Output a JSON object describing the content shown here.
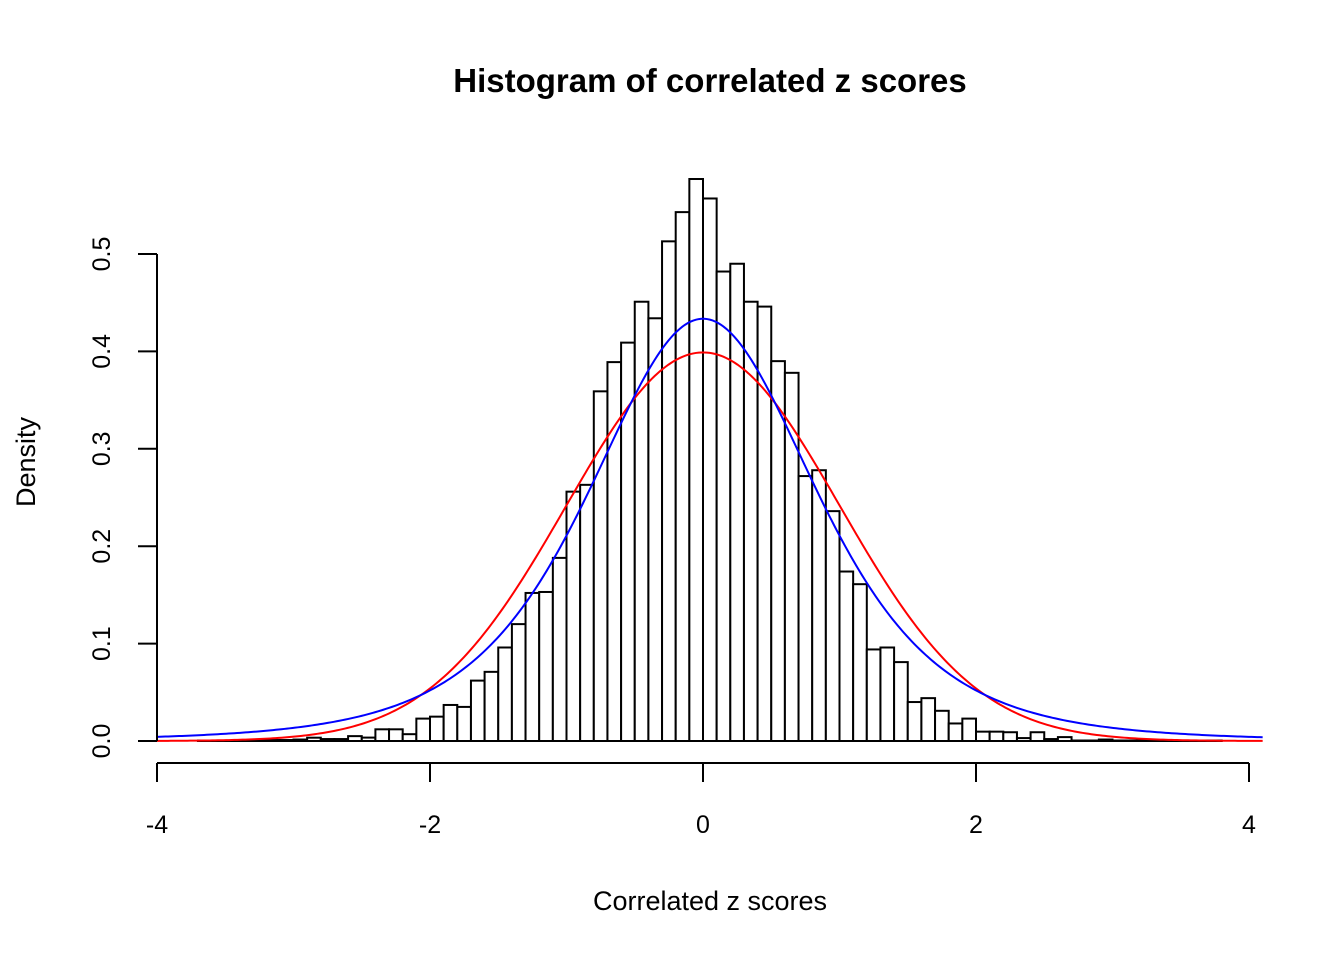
{
  "chart_data": {
    "type": "bar",
    "title": "Histogram of correlated z scores",
    "xlabel": "Correlated z scores",
    "ylabel": "Density",
    "xlim": [
      -4,
      4
    ],
    "ylim": [
      0,
      0.5
    ],
    "grid": false,
    "x_ticks": [
      "-4",
      "-2",
      "0",
      "2",
      "4"
    ],
    "x_tick_values": [
      -4,
      -2,
      0,
      2,
      4
    ],
    "y_ticks": [
      "0.0",
      "0.1",
      "0.2",
      "0.3",
      "0.4",
      "0.5"
    ],
    "y_tick_values": [
      0,
      0.1,
      0.2,
      0.3,
      0.4,
      0.5
    ],
    "bin_start": -3.7,
    "bin_width": 0.1,
    "densities": [
      0.0005,
      0.0005,
      0.0005,
      0.0008,
      0.001,
      0.001,
      0.001,
      0.0015,
      0.0034,
      0.002,
      0.002,
      0.005,
      0.0035,
      0.012,
      0.012,
      0.007,
      0.023,
      0.025,
      0.037,
      0.035,
      0.062,
      0.071,
      0.096,
      0.12,
      0.152,
      0.153,
      0.188,
      0.256,
      0.263,
      0.359,
      0.389,
      0.409,
      0.451,
      0.434,
      0.513,
      0.543,
      0.577,
      0.557,
      0.482,
      0.49,
      0.451,
      0.446,
      0.39,
      0.378,
      0.272,
      0.278,
      0.236,
      0.174,
      0.161,
      0.094,
      0.096,
      0.081,
      0.04,
      0.044,
      0.031,
      0.018,
      0.023,
      0.0096,
      0.0096,
      0.009,
      0.003,
      0.009,
      0.002,
      0.004,
      0.0005,
      0.0005,
      0.0015,
      0.0005,
      0.0005,
      0.0005,
      0.0005,
      0.0005,
      0.0005,
      0.0005,
      0.0005
    ],
    "curves": [
      {
        "name": "standard normal density",
        "color": "#ff0000",
        "family": "normal",
        "mean": 0,
        "sd": 1
      },
      {
        "name": "fitted heavy-tailed density",
        "color": "#0000ff",
        "family": "scaled-t",
        "df": 4,
        "scale": 0.865
      }
    ],
    "curve_x_range": [
      -4,
      4.1
    ],
    "bar_fill": "#ffffff",
    "bar_stroke": "#000000"
  }
}
